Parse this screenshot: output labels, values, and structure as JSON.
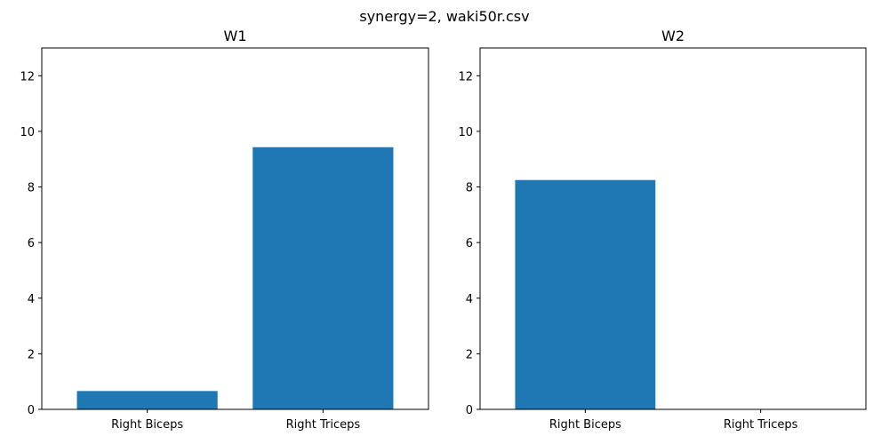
{
  "chart_data": {
    "suptitle": "synergy=2, waki50r.csv",
    "type": "bar",
    "bar_color": "#1f77b4",
    "panels": [
      {
        "title": "W1",
        "categories": [
          "Right Biceps",
          "Right Triceps"
        ],
        "values": [
          0.66,
          9.43
        ],
        "ylim": [
          0,
          13
        ],
        "yticks": [
          0,
          2,
          4,
          6,
          8,
          10,
          12
        ]
      },
      {
        "title": "W2",
        "categories": [
          "Right Biceps",
          "Right Triceps"
        ],
        "values": [
          8.25,
          0
        ],
        "ylim": [
          0,
          13
        ],
        "yticks": [
          0,
          2,
          4,
          6,
          8,
          10,
          12
        ]
      }
    ]
  }
}
